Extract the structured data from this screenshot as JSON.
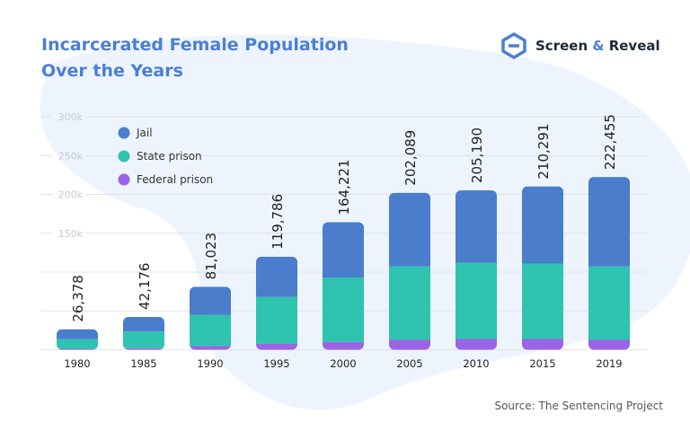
{
  "title_lines": [
    "Incarcerated Female Population",
    "Over the Years"
  ],
  "logo": {
    "name": "Screen",
    "amp": "&",
    "name2": "Reveal"
  },
  "source": "Source: The Sentencing Project",
  "colors": {
    "jail": "#4a7dcc",
    "state": "#2ec4b0",
    "federal": "#9b64e6",
    "title": "#4a7fd6",
    "background_blob": "#eef4fd"
  },
  "chart_data": {
    "type": "bar",
    "stacked": true,
    "categories": [
      "1980",
      "1985",
      "1990",
      "1995",
      "2000",
      "2005",
      "2010",
      "2015",
      "2019"
    ],
    "series": [
      {
        "name": "Federal prison",
        "values": [
          1200,
          2000,
          5000,
          7700,
          10000,
          12700,
          13900,
          13900,
          12700
        ]
      },
      {
        "name": "State prison",
        "values": [
          12300,
          21500,
          39700,
          60200,
          82900,
          94500,
          97900,
          97100,
          94500
        ]
      },
      {
        "name": "Jail",
        "values": [
          12878,
          18676,
          36323,
          51886,
          71321,
          94889,
          93390,
          99291,
          115255
        ]
      }
    ],
    "totals": [
      "26,378",
      "42,176",
      "81,023",
      "119,786",
      "164,221",
      "202,089",
      "205,190",
      "210,291",
      "222,455"
    ],
    "legend_order": [
      "Jail",
      "State prison",
      "Federal prison"
    ],
    "yticks": [
      {
        "v": 300000,
        "label": "300k"
      },
      {
        "v": 250000,
        "label": "250k"
      },
      {
        "v": 200000,
        "label": "200k"
      },
      {
        "v": 150000,
        "label": "150k"
      },
      {
        "v": 100000,
        "label": ""
      },
      {
        "v": 50000,
        "label": ""
      },
      {
        "v": 0,
        "label": ""
      }
    ],
    "ylim": [
      0,
      300000
    ],
    "grid": true,
    "legend_position": "top-left"
  }
}
